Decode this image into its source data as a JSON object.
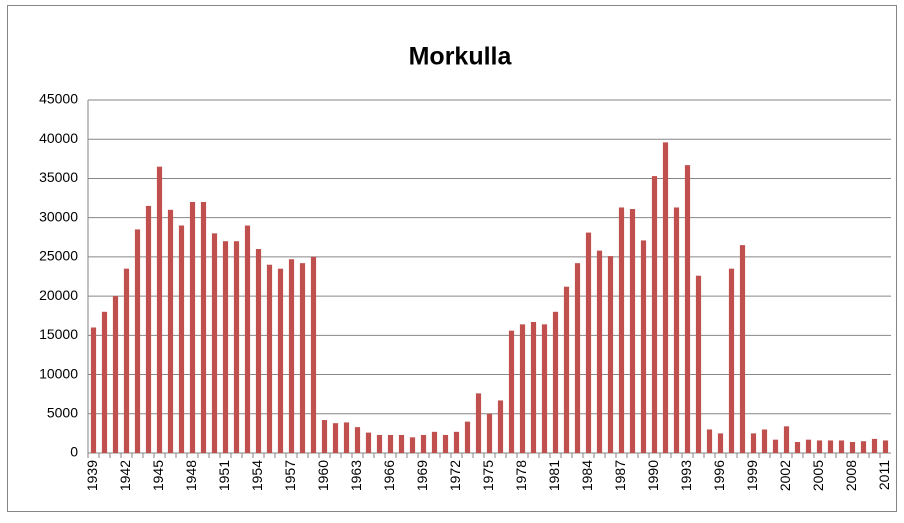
{
  "chart_data": {
    "type": "bar",
    "title": "Morkulla",
    "categories": [
      "1939",
      null,
      null,
      "1942",
      null,
      null,
      "1945",
      null,
      null,
      "1948",
      null,
      null,
      "1951",
      null,
      null,
      "1954",
      null,
      null,
      "1957",
      null,
      null,
      "1960",
      null,
      null,
      "1963",
      null,
      null,
      "1966",
      null,
      null,
      "1969",
      null,
      null,
      "1972",
      null,
      null,
      "1975",
      null,
      null,
      "1978",
      null,
      null,
      "1981",
      null,
      null,
      "1984",
      null,
      null,
      "1987",
      null,
      null,
      "1990",
      null,
      null,
      "1993",
      null,
      null,
      "1996",
      null,
      null,
      "1999",
      null,
      null,
      "2002",
      null,
      null,
      "2005",
      null,
      null,
      "2008",
      null,
      null,
      "2011"
    ],
    "values": [
      16000,
      18000,
      20000,
      23500,
      28500,
      31500,
      36500,
      31000,
      29000,
      32000,
      32000,
      28000,
      27000,
      27000,
      29000,
      26000,
      24000,
      23500,
      24700,
      24200,
      25000,
      4200,
      3800,
      3900,
      3300,
      2600,
      2300,
      2300,
      2300,
      2000,
      2300,
      2700,
      2300,
      2700,
      4000,
      7600,
      5000,
      6700,
      15600,
      16400,
      16700,
      16400,
      18000,
      21200,
      24200,
      28100,
      25800,
      25100,
      31300,
      31100,
      27100,
      35300,
      39600,
      31300,
      36700,
      22600,
      3000,
      2500,
      23500,
      26500,
      2500,
      3000,
      1700,
      3400,
      1400,
      1700,
      1600,
      1600,
      1600,
      1400,
      1500,
      1800,
      1600
    ],
    "color": "#c0504d",
    "ylim": [
      0,
      45000
    ],
    "yticks": [
      0,
      5000,
      10000,
      15000,
      20000,
      25000,
      30000,
      35000,
      40000,
      45000
    ],
    "grid": true
  }
}
